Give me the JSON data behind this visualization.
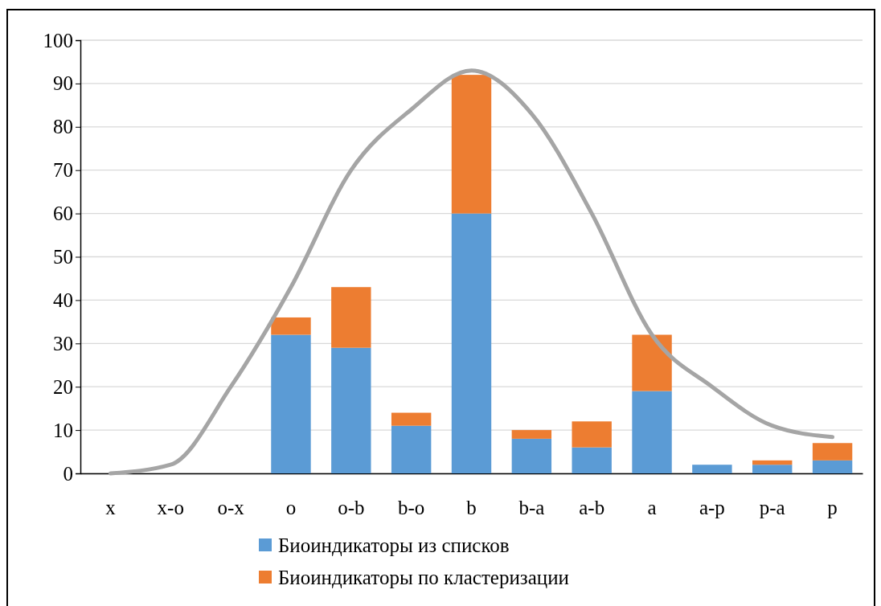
{
  "chart_data": {
    "type": "bar",
    "stacked": true,
    "categories": [
      "x",
      "x-o",
      "o-x",
      "o",
      "o-b",
      "b-o",
      "b",
      "b-a",
      "a-b",
      "a",
      "a-p",
      "p-a",
      "p"
    ],
    "series": [
      {
        "name": "Биоиндикаторы из списков",
        "color": "#5b9bd5",
        "values": [
          0,
          0,
          0,
          32,
          29,
          11,
          60,
          8,
          6,
          19,
          2,
          2,
          3
        ]
      },
      {
        "name": "Биоиндикаторы по кластеризации",
        "color": "#ed7d31",
        "values": [
          0,
          0,
          0,
          4,
          14,
          3,
          32,
          2,
          6,
          13,
          0,
          1,
          4
        ]
      },
      {
        "type": "line",
        "color": "#a5a5a5",
        "values": [
          0,
          2,
          20,
          43,
          70,
          84,
          93,
          83,
          60,
          32,
          20,
          11,
          8.4
        ]
      }
    ],
    "ylim": [
      0,
      100
    ],
    "yticks": [
      0,
      10,
      20,
      30,
      40,
      50,
      60,
      70,
      80,
      90,
      100
    ],
    "grid": "y",
    "legend": "bottom"
  }
}
